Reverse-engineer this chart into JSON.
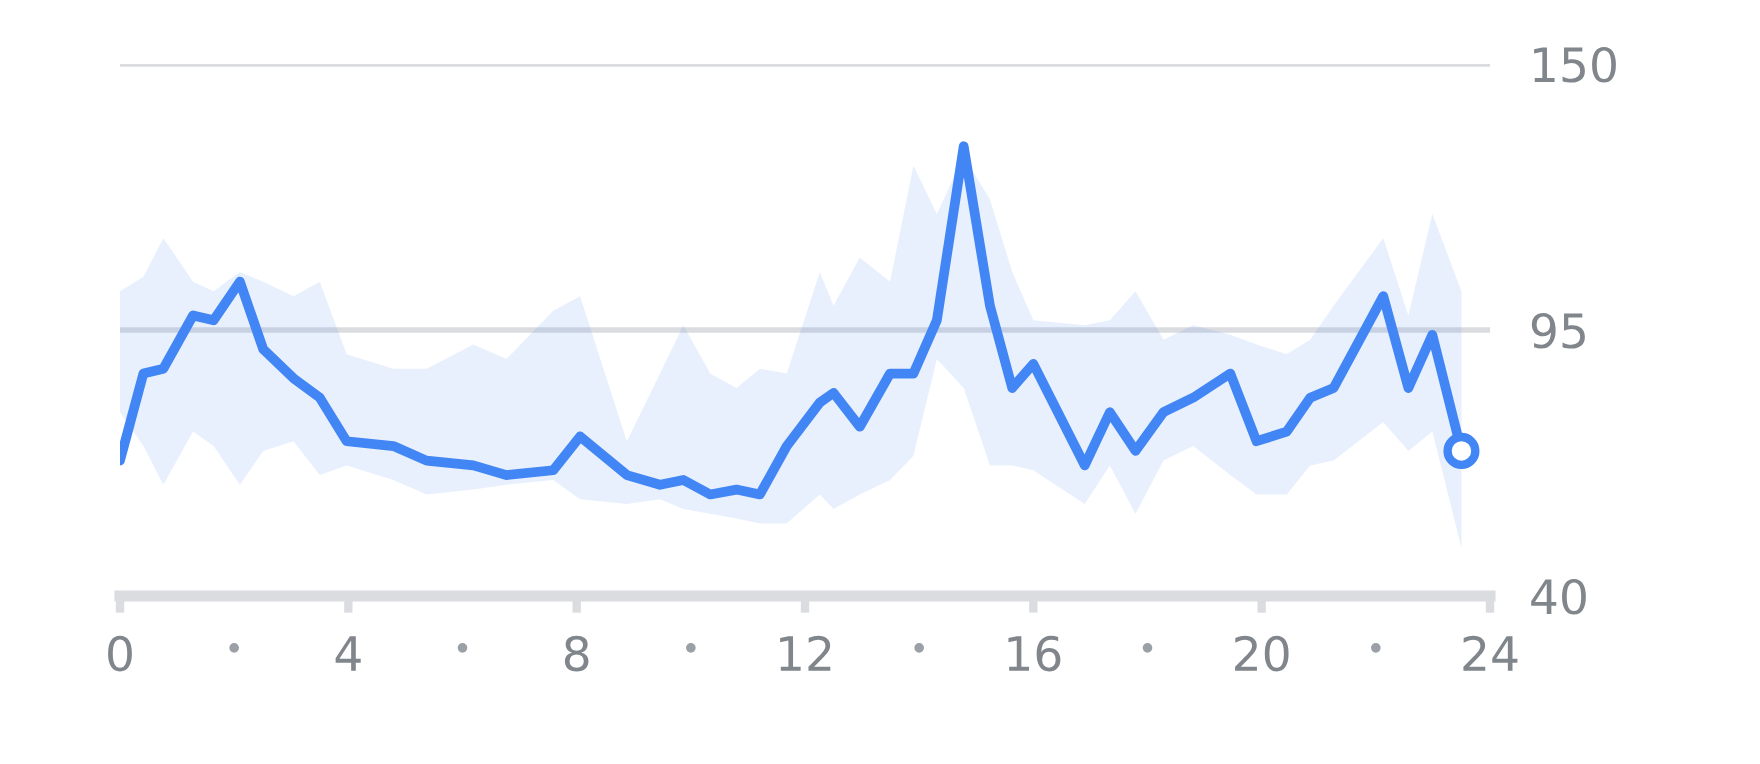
{
  "chart_data": {
    "type": "line",
    "x": [
      0,
      0.41,
      0.76,
      1.28,
      1.64,
      2.1,
      2.51,
      3.04,
      3.5,
      3.97,
      4.79,
      5.37,
      6.19,
      6.77,
      7.59,
      8.06,
      8.88,
      9.46,
      9.87,
      10.34,
      10.8,
      11.21,
      11.68,
      12.26,
      12.5,
      12.96,
      13.49,
      13.9,
      14.31,
      14.78,
      15.24,
      15.63,
      16.0,
      16.9,
      17.34,
      17.79,
      18.28,
      18.8,
      19.45,
      19.91,
      20.44,
      20.85,
      21.26,
      22.13,
      22.57,
      22.99,
      23.5
    ],
    "series": [
      {
        "color": "#4285f4",
        "values": [
          68,
          86,
          87,
          98,
          97,
          105,
          91,
          85,
          81,
          72,
          71,
          68,
          67,
          65,
          66,
          73,
          65,
          63,
          64,
          61,
          62,
          61,
          71,
          80,
          82,
          75,
          86,
          86,
          97,
          133,
          100,
          83,
          88,
          67,
          78,
          70,
          78,
          81,
          86,
          72,
          74,
          81,
          83,
          102,
          83,
          94,
          70
        ],
        "lower": [
          78,
          71,
          63,
          74,
          71,
          63,
          70,
          72,
          65,
          67,
          64,
          61,
          62,
          63,
          64,
          60,
          59,
          60,
          58,
          57,
          56,
          55,
          55,
          61,
          58,
          61,
          64,
          69,
          89,
          83,
          67,
          67,
          66,
          59,
          67,
          57,
          68,
          71,
          65,
          61,
          61,
          67,
          68,
          76,
          70,
          74,
          50
        ],
        "upper": [
          103,
          106,
          114,
          105,
          103,
          107,
          105,
          102,
          105,
          90,
          87,
          87,
          92,
          89,
          99,
          102,
          72,
          86,
          96,
          86,
          83,
          87,
          86,
          107,
          100,
          110,
          105,
          129,
          119,
          131,
          122,
          107,
          97,
          96,
          97,
          103,
          93,
          96,
          94,
          92,
          90,
          93,
          100,
          114,
          98,
          119,
          103
        ]
      }
    ],
    "xlim": [
      0,
      24
    ],
    "ylim": [
      40,
      150
    ],
    "xticks": [
      0,
      {
        "value": 2,
        "label": "•"
      },
      4,
      {
        "value": 6,
        "label": "•"
      },
      8,
      {
        "value": 10,
        "label": "•"
      },
      12,
      {
        "value": 14,
        "label": "•"
      },
      16,
      {
        "value": 18,
        "label": "•"
      },
      20,
      {
        "value": 22,
        "label": "•"
      },
      24
    ],
    "yticks": [
      40,
      95,
      150
    ],
    "grid": "y",
    "line_style": "solid"
  }
}
